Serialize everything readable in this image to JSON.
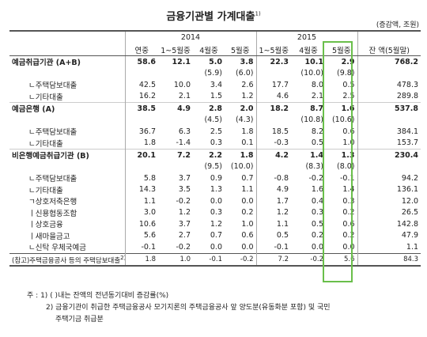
{
  "title": "금융기관별 가계대출",
  "title_sup": "1)",
  "unit": "(증감액, 조원)",
  "headers": {
    "year_2014": "2014",
    "year_2015": "2015",
    "cols": [
      "연중",
      "1~5월중",
      "4월중",
      "5월중",
      "1~5월중",
      "4월중",
      "5월중",
      "잔 액(5월말)"
    ]
  },
  "rows": [
    {
      "label": "예금취급기관 (A+B)",
      "bold": true,
      "vals": [
        "58.6",
        "12.1",
        "5.0",
        "3.8",
        "22.3",
        "10.1",
        "2.9",
        "768.2"
      ]
    },
    {
      "label": "",
      "paren": true,
      "vals": [
        "",
        "",
        "(5.9)",
        "(6.0)",
        "",
        "(10.0)",
        "(9.8)",
        ""
      ]
    },
    {
      "label": "ㄴ주택담보대출",
      "vals": [
        "42.5",
        "10.0",
        "3.4",
        "2.6",
        "17.7",
        "8.0",
        "0.5",
        "478.3"
      ]
    },
    {
      "label": "ㄴ기타대출",
      "vals": [
        "16.2",
        "2.1",
        "1.5",
        "1.2",
        "4.6",
        "2.1",
        "2.5",
        "289.8"
      ]
    },
    {
      "label": "예금은행 (A)",
      "bold": true,
      "vals": [
        "38.5",
        "4.9",
        "2.8",
        "2.0",
        "18.2",
        "8.7",
        "1.6",
        "537.8"
      ]
    },
    {
      "label": "",
      "paren": true,
      "vals": [
        "",
        "",
        "(4.5)",
        "(4.3)",
        "",
        "(10.8)",
        "(10.6)",
        ""
      ]
    },
    {
      "label": "ㄴ주택담보대출",
      "vals": [
        "36.7",
        "6.3",
        "2.5",
        "1.8",
        "18.5",
        "8.2",
        "0.6",
        "384.1"
      ]
    },
    {
      "label": "ㄴ기타대출",
      "vals": [
        "1.8",
        "-1.4",
        "0.3",
        "0.1",
        "-0.3",
        "0.5",
        "1.0",
        "153.7"
      ]
    },
    {
      "label": "비은행예금취급기관 (B)",
      "bold": true,
      "vals": [
        "20.1",
        "7.2",
        "2.2",
        "1.8",
        "4.2",
        "1.4",
        "1.3",
        "230.4"
      ]
    },
    {
      "label": "",
      "paren": true,
      "vals": [
        "",
        "",
        "(9.5)",
        "(10.0)",
        "",
        "(8.3)",
        "(8.0)",
        ""
      ]
    },
    {
      "label": "ㄴ주택담보대출",
      "vals": [
        "5.8",
        "3.7",
        "0.9",
        "0.7",
        "-0.8",
        "-0.2",
        "-0.1",
        "94.2"
      ]
    },
    {
      "label": "ㄴ기타대출",
      "vals": [
        "14.3",
        "3.5",
        "1.3",
        "1.1",
        "4.9",
        "1.6",
        "1.4",
        "136.1"
      ]
    },
    {
      "label": "ㄱ상호저축은행",
      "vals": [
        "1.1",
        "-0.2",
        "0.0",
        "0.0",
        "1.7",
        "0.4",
        "0.3",
        "12.0"
      ]
    },
    {
      "label": "ㅣ신용협동조합",
      "vals": [
        "3.0",
        "1.2",
        "0.3",
        "0.2",
        "1.2",
        "0.3",
        "0.2",
        "26.5"
      ]
    },
    {
      "label": "ㅣ상호금융",
      "vals": [
        "10.6",
        "3.7",
        "1.2",
        "1.0",
        "1.1",
        "0.5",
        "0.6",
        "142.8"
      ]
    },
    {
      "label": "ㅣ새마을금고",
      "vals": [
        "5.6",
        "2.7",
        "0.7",
        "0.6",
        "0.5",
        "0.2",
        "0.2",
        "47.9"
      ]
    },
    {
      "label": "ㄴ신탁 우체국예금",
      "vals": [
        "-0.1",
        "-0.2",
        "0.0",
        "0.0",
        "-0.1",
        "0.0",
        "0.0",
        "1.1"
      ]
    }
  ],
  "total_row": {
    "label": "(참고)주택금융공사 등의 주택담보대출",
    "sup": "2)",
    "vals": [
      "1.8",
      "1.0",
      "-0.1",
      "-0.2",
      "7.2",
      "-0.2",
      "5.6",
      "84.3"
    ]
  },
  "notes": {
    "prefix": "주 :",
    "n1_num": "1)",
    "n1_text": "(      )내는 잔액의 전년동기대비 증감률(%)",
    "n2_num": "2)",
    "n2_text": "금융기관이 취급한 주택금융공사 모기지론의 주택금융공사 앞 양도분(유동화분 포함) 및 국민",
    "n2_cont": "주택기금 취급분"
  }
}
